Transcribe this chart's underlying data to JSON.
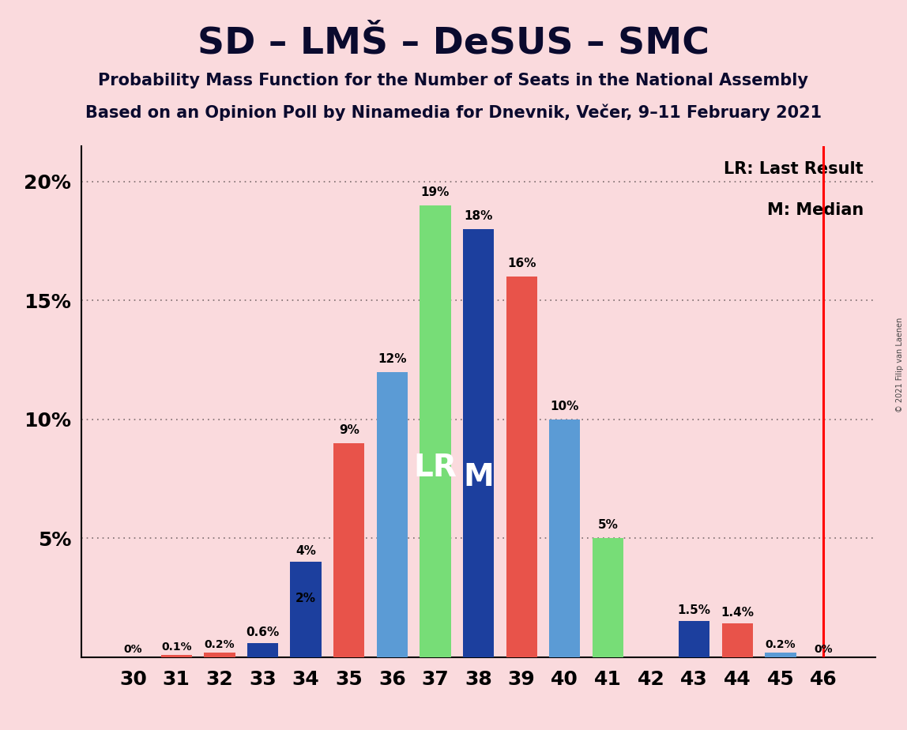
{
  "title": "SD – LMŠ – DeSUS – SMC",
  "subtitle1": "Probability Mass Function for the Number of Seats in the National Assembly",
  "subtitle2": "Based on an Opinion Poll by Ninamedia for Dnevnik, Večer, 9–11 February 2021",
  "copyright": "© 2021 Filip van Laenen",
  "seats": [
    30,
    31,
    32,
    33,
    34,
    35,
    36,
    37,
    38,
    39,
    40,
    41,
    42,
    43,
    44,
    45,
    46
  ],
  "values": [
    0.0,
    0.001,
    0.002,
    0.006,
    0.02,
    0.09,
    0.12,
    0.19,
    0.18,
    0.16,
    0.1,
    0.05,
    0.0,
    0.015,
    0.014,
    0.002,
    0.0
  ],
  "extra_blue": [
    0.0,
    0.0,
    0.0,
    0.006,
    0.04,
    0.0,
    0.0,
    0.0,
    0.0,
    0.0,
    0.0,
    0.0,
    0.0,
    0.0,
    0.0,
    0.0,
    0.0
  ],
  "bar_colors": [
    "#5b9bd5",
    "#e8534a",
    "#e8534a",
    "#77dd77",
    "#77dd77",
    "#e8534a",
    "#5b9bd5",
    "#77dd77",
    "#1c3f9e",
    "#e8534a",
    "#5b9bd5",
    "#77dd77",
    "#5b9bd5",
    "#1c3f9e",
    "#e8534a",
    "#5b9bd5",
    "#5b9bd5"
  ],
  "extra_blue_color": "#1c3f9e",
  "bar_labels": [
    "0%",
    "0.1%",
    "0.2%",
    "0.6%",
    "2%",
    "9%",
    "12%",
    "19%",
    "18%",
    "16%",
    "10%",
    "5%",
    "",
    "1.5%",
    "1.4%",
    "0.2%",
    "0%"
  ],
  "extra_labels": [
    "",
    "",
    "",
    "",
    "4%",
    "",
    "",
    "",
    "",
    "",
    "",
    "",
    "",
    "",
    "",
    "",
    ""
  ],
  "LR_idx": 7,
  "M_idx": 8,
  "vline_idx": 16,
  "background_color": "#fadadd",
  "ylim": [
    0,
    0.215
  ],
  "ytick_positions": [
    0.05,
    0.1,
    0.15,
    0.2
  ],
  "ytick_labels": [
    "5%",
    "10%",
    "15%",
    "20%"
  ],
  "title_fontsize": 34,
  "subtitle_fontsize": 15,
  "tick_fontsize": 18,
  "bar_label_fontsize": 11,
  "lr_m_fontsize": 28,
  "legend_fontsize": 15
}
